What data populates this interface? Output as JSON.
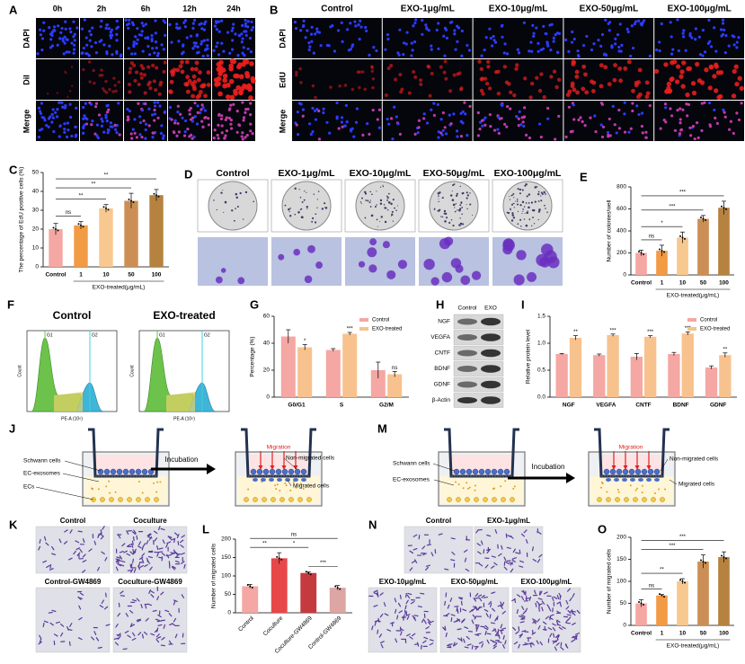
{
  "panel_labels": [
    "A",
    "B",
    "C",
    "D",
    "E",
    "F",
    "G",
    "H",
    "I",
    "J",
    "K",
    "L",
    "M",
    "N",
    "O"
  ],
  "panel_a": {
    "columns": [
      "0h",
      "2h",
      "6h",
      "12h",
      "24h"
    ],
    "rows": [
      "DAPI",
      "DiI",
      "Merge"
    ]
  },
  "panel_b": {
    "columns": [
      "Control",
      "EXO-1μg/mL",
      "EXO-10μg/mL",
      "EXO-50μg/mL",
      "EXO-100μg/mL"
    ],
    "rows": [
      "DAPI",
      "EdU",
      "Merge"
    ]
  },
  "panel_d": {
    "columns": [
      "Control",
      "EXO-1μg/mL",
      "EXO-10μg/mL",
      "EXO-50μg/mL",
      "EXO-100μg/mL"
    ]
  },
  "panel_f": {
    "plots": [
      {
        "title": "Control",
        "peaks": [
          "G1",
          "G2"
        ]
      },
      {
        "title": "EXO-treated",
        "peaks": [
          "G1",
          "G2"
        ]
      }
    ],
    "x_label": "PE-A (10⁶)",
    "y_label": "Count"
  },
  "panel_h": {
    "columns": [
      "Control",
      "EXO"
    ],
    "rows": [
      "NGF",
      "VEGFA",
      "CNTF",
      "BDNF",
      "GDNF",
      "β-Actin"
    ]
  },
  "panel_j": {
    "schwann": "Schwann cells",
    "exosomes": "EC-exosomes",
    "ecs": "ECs",
    "incubation": "Incubation",
    "migration": "Migration",
    "non_migrated": "Non-migrated cells",
    "migrated": "Migrated cells"
  },
  "panel_m": {
    "schwann": "Schwann cells",
    "exosomes": "EC-exosomes",
    "incubation": "Incubation",
    "migration": "Migration",
    "non_migrated": "Non-migrated cells",
    "migrated": "Migrated cells"
  },
  "panel_k": {
    "labels": [
      "Control",
      "Coculture",
      "Control-GW4869",
      "Coculture-GW4869"
    ]
  },
  "panel_n": {
    "labels": [
      "Control",
      "EXO-1μg/mL",
      "EXO-10μg/mL",
      "EXO-50μg/mL",
      "EXO-100μg/mL"
    ]
  },
  "chart_data": [
    {
      "type": "bar",
      "y_label": "The percentage of EdU positive cells (%)",
      "x_label": "EXO-treated(μg/mL)",
      "categories": [
        "Control",
        "1",
        "10",
        "50",
        "100"
      ],
      "values": [
        20,
        22,
        31,
        35,
        38
      ],
      "errors": [
        3,
        2,
        2,
        4,
        3
      ],
      "colors": [
        "#f4a7a3",
        "#f29b45",
        "#f7c88f",
        "#cb8f55",
        "#b5823f"
      ],
      "ylim": [
        0,
        50
      ],
      "yticks": [
        0,
        10,
        20,
        30,
        40,
        50
      ],
      "annotations": [
        "ns",
        "**",
        "**",
        "**"
      ]
    },
    {
      "type": "bar",
      "y_label": "Number of colonies/well",
      "x_label": "EXO-treated(μg/mL)",
      "categories": [
        "Control",
        "1",
        "10",
        "50",
        "100"
      ],
      "values": [
        200,
        220,
        340,
        510,
        610
      ],
      "errors": [
        25,
        50,
        50,
        30,
        60
      ],
      "colors": [
        "#f4a7a3",
        "#f29b45",
        "#f7c88f",
        "#cb8f55",
        "#b5823f"
      ],
      "ylim": [
        0,
        800
      ],
      "yticks": [
        0,
        200,
        400,
        600,
        800
      ],
      "annotations": [
        "ns",
        "*",
        "***",
        "***"
      ]
    },
    {
      "type": "grouped_bar",
      "y_label": "Percentage (%)",
      "categories": [
        "G0/G1",
        "S",
        "G2/M"
      ],
      "series": [
        {
          "name": "Control",
          "color": "#f4a7a3",
          "values": [
            45,
            35,
            20
          ],
          "errors": [
            5,
            1,
            6
          ]
        },
        {
          "name": "EXO-treated",
          "color": "#f7c28e",
          "values": [
            37,
            47,
            17
          ],
          "errors": [
            2,
            1,
            2
          ]
        }
      ],
      "ylim": [
        0,
        60
      ],
      "yticks": [
        0,
        20,
        40,
        60
      ],
      "legend": "top-right",
      "annotations": [
        "*",
        "***",
        "ns"
      ]
    },
    {
      "type": "grouped_bar",
      "y_label": "Relative protein level",
      "categories": [
        "NGF",
        "VEGFA",
        "CNTF",
        "BDNF",
        "GDNF"
      ],
      "series": [
        {
          "name": "Control",
          "color": "#f4a7a3",
          "values": [
            0.8,
            0.78,
            0.75,
            0.8,
            0.55
          ],
          "errors": [
            0.01,
            0.02,
            0.06,
            0.03,
            0.03
          ]
        },
        {
          "name": "EXO-treated",
          "color": "#f7c28e",
          "values": [
            1.1,
            1.15,
            1.12,
            1.18,
            0.78
          ],
          "errors": [
            0.04,
            0.02,
            0.02,
            0.03,
            0.04
          ]
        }
      ],
      "ylim": [
        0,
        1.5
      ],
      "yticks": [
        {
          "value": 0,
          "label": "0.0"
        },
        0.5,
        {
          "value": 1,
          "label": "1.0"
        },
        1.5
      ],
      "legend": "top-right",
      "annotations": [
        "**",
        "***",
        "***",
        "***",
        "**"
      ]
    },
    {
      "type": "bar",
      "y_label": "Number of migrated cells",
      "categories": [
        "Control",
        "Coculture",
        "Coculture-GW4869",
        "Control-GW4869"
      ],
      "values": [
        72,
        148,
        108,
        68
      ],
      "errors": [
        5,
        15,
        3,
        6
      ],
      "colors": [
        "#f4a7a3",
        "#e8474a",
        "#c53a3e",
        "#dba6a3"
      ],
      "ylim": [
        0,
        200
      ],
      "yticks": [
        0,
        50,
        100,
        150,
        200
      ],
      "annotations": [
        "ns",
        "**",
        "*",
        "***"
      ]
    },
    {
      "type": "bar",
      "y_label": "Number of migrated cells",
      "x_label": "EXO-treated(μg/mL)",
      "categories": [
        "Control",
        "1",
        "10",
        "50",
        "100"
      ],
      "values": [
        50,
        68,
        100,
        145,
        155
      ],
      "errors": [
        8,
        2,
        6,
        15,
        12
      ],
      "colors": [
        "#f4a7a3",
        "#f29b45",
        "#f7c88f",
        "#cb8f55",
        "#b5823f"
      ],
      "ylim": [
        0,
        200
      ],
      "yticks": [
        0,
        50,
        100,
        150,
        200
      ],
      "annotations": [
        "ns",
        "**",
        "***",
        "***"
      ]
    }
  ]
}
